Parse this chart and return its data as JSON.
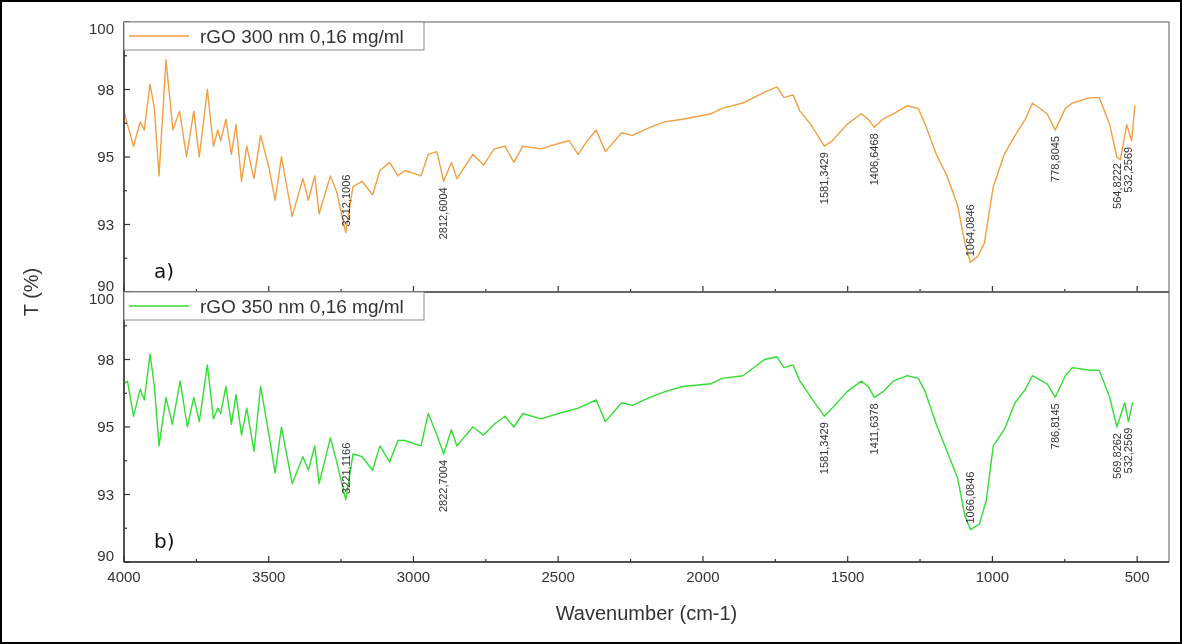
{
  "chart_data": [
    {
      "type": "line",
      "ylabel": "T (%)",
      "xlim": [
        4000,
        390
      ],
      "ylim": [
        90,
        100
      ],
      "xticks": [
        4000,
        {
          "value": 3750,
          "label": null
        },
        3500,
        {
          "value": 3250,
          "label": null
        },
        3000,
        {
          "value": 2750,
          "label": null
        },
        2500,
        {
          "value": 2250,
          "label": null
        },
        2000,
        {
          "value": 1750,
          "label": null
        },
        1500,
        {
          "value": 1250,
          "label": null
        },
        1000,
        {
          "value": 750,
          "label": null
        },
        500
      ],
      "yticks": [
        90,
        {
          "value": 91.25,
          "label": null
        },
        {
          "value": 92.5,
          "label": "93"
        },
        {
          "value": 93.75,
          "label": null
        },
        95,
        {
          "value": 96.25,
          "label": null
        },
        {
          "value": 97.5,
          "label": "98"
        },
        {
          "value": 98.75,
          "label": null
        },
        100
      ],
      "tick_labels": "y",
      "legend": "top left",
      "marker": "none",
      "line_style": "solid",
      "series": [
        {
          "name": "rGO 300 nm 0,16 mg/ml",
          "color": "#f0a040",
          "x": [
            4000,
            3988,
            3967,
            3944,
            3930,
            3910,
            3895,
            3879,
            3855,
            3831,
            3808,
            3784,
            3759,
            3740,
            3712,
            3691,
            3676,
            3666,
            3648,
            3629,
            3613,
            3594,
            3576,
            3551,
            3528,
            3499,
            3478,
            3456,
            3419,
            3382,
            3363,
            3341,
            3326,
            3287,
            3265,
            3234,
            3209,
            3178,
            3141,
            3116,
            3082,
            3054,
            3030,
            2974,
            2949,
            2919,
            2896,
            2869,
            2850,
            2795,
            2758,
            2721,
            2684,
            2653,
            2622,
            2560,
            2499,
            2462,
            2431,
            2400,
            2369,
            2337,
            2281,
            2244,
            2183,
            2133,
            2071,
            1972,
            1935,
            1862,
            1787,
            1744,
            1720,
            1689,
            1665,
            1627,
            1581,
            1553,
            1503,
            1453,
            1429,
            1408,
            1379,
            1342,
            1294,
            1256,
            1232,
            1194,
            1157,
            1120,
            1095,
            1076,
            1052,
            1028,
            997,
            959,
            922,
            886,
            862,
            811,
            783,
            748,
            724,
            662,
            631,
            595,
            570,
            558,
            536,
            519,
            508
          ],
          "values": [
            96.7,
            96.2,
            95.4,
            96.3,
            96.0,
            97.7,
            96.8,
            94.3,
            98.6,
            96.0,
            96.7,
            95.0,
            96.7,
            95.0,
            97.5,
            95.4,
            96.0,
            95.6,
            96.4,
            95.1,
            96.2,
            94.1,
            95.4,
            94.2,
            95.8,
            94.6,
            93.4,
            95.0,
            92.8,
            94.2,
            93.4,
            94.3,
            92.9,
            94.3,
            93.7,
            92.2,
            93.9,
            94.1,
            93.6,
            94.5,
            94.8,
            94.3,
            94.5,
            94.3,
            95.1,
            95.2,
            94.1,
            94.8,
            94.2,
            95.1,
            94.7,
            95.3,
            95.4,
            94.8,
            95.4,
            95.3,
            95.5,
            95.6,
            95.1,
            95.6,
            96.0,
            95.2,
            95.9,
            95.8,
            96.1,
            96.3,
            96.4,
            96.6,
            96.8,
            97.0,
            97.4,
            97.6,
            97.2,
            97.3,
            96.7,
            96.2,
            95.4,
            95.6,
            96.2,
            96.6,
            96.4,
            96.1,
            96.4,
            96.6,
            96.9,
            96.8,
            96.2,
            95.1,
            94.3,
            93.2,
            91.8,
            91.1,
            91.3,
            91.8,
            93.9,
            95.1,
            95.8,
            96.4,
            97.0,
            96.6,
            96.0,
            96.8,
            97.0,
            97.2,
            97.2,
            96.2,
            95.0,
            94.9,
            96.2,
            95.6,
            96.9
          ]
        }
      ],
      "annotations": [
        {
          "text": "3212,1006",
          "x": 3234,
          "y": 92.2
        },
        {
          "text": "2812,6004",
          "x": 2896,
          "y": 94.1
        },
        {
          "text": "1581,3429",
          "x": 1581,
          "y": 95.4
        },
        {
          "text": "1406,6468",
          "x": 1408,
          "y": 96.1
        },
        {
          "text": "1064,0846",
          "x": 1076,
          "y": 91.1
        },
        {
          "text": "778,8045",
          "x": 783,
          "y": 96.0
        },
        {
          "text": "564,8222",
          "x": 570,
          "y": 95.0
        },
        {
          "text": "532,2569",
          "x": 530,
          "y": 95.6
        },
        "a)"
      ]
    },
    {
      "type": "line",
      "xlabel": "Wavenumber (cm-1)",
      "xlim": [
        4000,
        390
      ],
      "ylim": [
        90,
        100
      ],
      "xticks": [
        4000,
        {
          "value": 3750,
          "label": null
        },
        3500,
        {
          "value": 3250,
          "label": null
        },
        3000,
        {
          "value": 2750,
          "label": null
        },
        2500,
        {
          "value": 2250,
          "label": null
        },
        2000,
        {
          "value": 1750,
          "label": null
        },
        1500,
        {
          "value": 1250,
          "label": null
        },
        1000,
        {
          "value": 750,
          "label": null
        },
        500
      ],
      "yticks": [
        90,
        {
          "value": 91.25,
          "label": null
        },
        {
          "value": 92.5,
          "label": "93"
        },
        {
          "value": 93.75,
          "label": null
        },
        95,
        {
          "value": 96.25,
          "label": null
        },
        {
          "value": 97.5,
          "label": "98"
        },
        {
          "value": 98.75,
          "label": null
        },
        100
      ],
      "legend": "top left",
      "marker": "none",
      "line_style": "solid",
      "series": [
        {
          "name": "rGO 350 nm 0,16 mg/ml",
          "color": "#33dd33",
          "x": [
            4000,
            3988,
            3967,
            3944,
            3930,
            3910,
            3895,
            3879,
            3855,
            3833,
            3806,
            3781,
            3759,
            3740,
            3712,
            3691,
            3676,
            3666,
            3648,
            3629,
            3613,
            3594,
            3576,
            3551,
            3528,
            3499,
            3478,
            3456,
            3419,
            3382,
            3363,
            3341,
            3326,
            3287,
            3265,
            3234,
            3209,
            3178,
            3141,
            3116,
            3082,
            3054,
            3030,
            2974,
            2949,
            2919,
            2896,
            2869,
            2850,
            2795,
            2758,
            2721,
            2684,
            2653,
            2622,
            2560,
            2499,
            2431,
            2369,
            2337,
            2281,
            2244,
            2183,
            2133,
            2071,
            1972,
            1935,
            1862,
            1787,
            1744,
            1720,
            1689,
            1665,
            1627,
            1581,
            1553,
            1503,
            1453,
            1429,
            1408,
            1379,
            1342,
            1294,
            1256,
            1232,
            1194,
            1157,
            1120,
            1095,
            1076,
            1045,
            1021,
            997,
            959,
            922,
            886,
            862,
            811,
            783,
            748,
            724,
            662,
            631,
            595,
            570,
            543,
            530,
            516
          ],
          "values": [
            96.6,
            96.7,
            95.4,
            96.4,
            96.0,
            97.7,
            96.5,
            94.3,
            96.1,
            95.1,
            96.7,
            95.0,
            96.1,
            95.2,
            97.3,
            95.3,
            95.7,
            95.5,
            96.5,
            95.1,
            96.2,
            94.7,
            95.7,
            94.1,
            96.5,
            94.7,
            93.3,
            95.0,
            92.9,
            93.9,
            93.4,
            94.3,
            92.9,
            94.6,
            93.7,
            92.3,
            94.0,
            93.9,
            93.4,
            94.3,
            93.7,
            94.5,
            94.5,
            94.3,
            95.5,
            94.7,
            94.0,
            94.9,
            94.3,
            95.0,
            94.7,
            95.1,
            95.4,
            95.0,
            95.5,
            95.3,
            95.5,
            95.7,
            96.0,
            95.2,
            95.9,
            95.8,
            96.1,
            96.3,
            96.5,
            96.6,
            96.8,
            96.9,
            97.5,
            97.6,
            97.2,
            97.3,
            96.7,
            96.1,
            95.4,
            95.7,
            96.3,
            96.7,
            96.5,
            96.1,
            96.3,
            96.7,
            96.9,
            96.8,
            96.3,
            95.1,
            94.1,
            93.1,
            91.7,
            91.2,
            91.4,
            92.3,
            94.3,
            94.9,
            95.9,
            96.4,
            96.9,
            96.6,
            96.1,
            96.9,
            97.2,
            97.1,
            97.1,
            96.1,
            95.0,
            95.9,
            95.2,
            95.9
          ]
        }
      ],
      "annotations": [
        {
          "text": "3221,1166",
          "x": 3234,
          "y": 92.3
        },
        {
          "text": "2822,7004",
          "x": 2896,
          "y": 94.0
        },
        {
          "text": "1581,3429",
          "x": 1581,
          "y": 95.4
        },
        {
          "text": "1411,6378",
          "x": 1408,
          "y": 96.1
        },
        {
          "text": "1066,0846",
          "x": 1076,
          "y": 91.2
        },
        {
          "text": "786,8145",
          "x": 783,
          "y": 96.1
        },
        {
          "text": "569,8262",
          "x": 570,
          "y": 95.0
        },
        {
          "text": "532,2569",
          "x": 530,
          "y": 95.2
        },
        "b)"
      ]
    }
  ]
}
